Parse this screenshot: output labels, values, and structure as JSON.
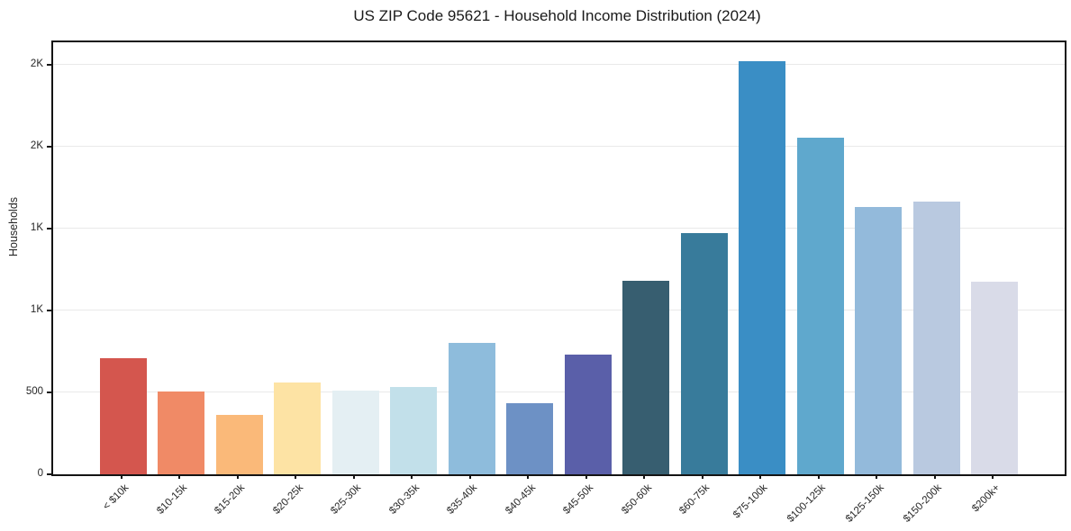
{
  "chart_data": {
    "type": "bar",
    "title": "US ZIP Code 95621 - Household Income Distribution (2024)",
    "ylabel": "Households",
    "xlabel": "",
    "categories": [
      "< $10k",
      "$10-15k",
      "$15-20k",
      "$20-25k",
      "$25-30k",
      "$30-35k",
      "$35-40k",
      "$40-45k",
      "$45-50k",
      "$50-60k",
      "$60-75k",
      "$75-100k",
      "$100-125k",
      "$125-150k",
      "$150-200k",
      "$200k+"
    ],
    "values": [
      710,
      505,
      360,
      560,
      510,
      535,
      800,
      435,
      730,
      1180,
      1475,
      2520,
      2055,
      1630,
      1665,
      1175
    ],
    "bar_colors": [
      "#d4564e",
      "#f08a66",
      "#fab979",
      "#fde3a4",
      "#e4eff3",
      "#c2e0ea",
      "#8ebcdc",
      "#6d91c5",
      "#5a5fa9",
      "#375e70",
      "#387b9b",
      "#3a8ec5",
      "#5fa8cd",
      "#93badb",
      "#b9c9e0",
      "#d9dbe8"
    ],
    "ylim": [
      0,
      2637
    ],
    "yticks": [
      {
        "value": 0,
        "label": "0"
      },
      {
        "value": 500,
        "label": "500"
      },
      {
        "value": 1000,
        "label": "1K"
      },
      {
        "value": 1500,
        "label": "1K"
      },
      {
        "value": 2000,
        "label": "2K"
      },
      {
        "value": 2500,
        "label": "2K"
      }
    ],
    "grid": "horizontal",
    "legend": "none",
    "background": "#ffffff",
    "grid_color": "#e9e9e9",
    "axis_color": "#141414",
    "text_color": "#262626"
  }
}
